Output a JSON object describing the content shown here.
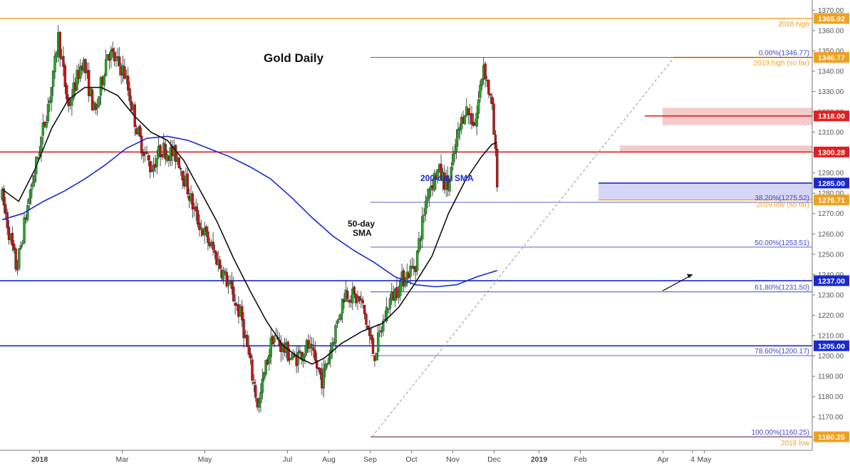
{
  "chart_data": {
    "type": "candlestick",
    "title": "Gold Daily",
    "instrument": "Gold",
    "timeframe": "Daily",
    "x_tick_labels": [
      "2018",
      "Mar",
      "May",
      "Jul",
      "Aug",
      "Sep",
      "Oct",
      "Nov",
      "Dec",
      "2019",
      "Feb",
      "4",
      "Apr",
      "May"
    ],
    "x_tick_months": [
      0,
      2,
      4,
      6,
      7,
      8,
      9,
      10,
      11,
      12,
      13,
      14,
      15,
      16
    ],
    "bold_ticks": [
      "2018",
      "2019"
    ],
    "ylim": [
      1155,
      1375
    ],
    "y_ticks": [
      1170,
      1180,
      1190,
      1200,
      1210,
      1220,
      1230,
      1240,
      1250,
      1260,
      1270,
      1280,
      1290,
      1300,
      1310,
      1320,
      1330,
      1340,
      1350,
      1360,
      1370
    ],
    "price_path": [
      {
        "t": 0.0,
        "p": 1278
      },
      {
        "t": 0.35,
        "p": 1242
      },
      {
        "t": 0.6,
        "p": 1272
      },
      {
        "t": 0.9,
        "p": 1302
      },
      {
        "t": 1.25,
        "p": 1338
      },
      {
        "t": 1.35,
        "p": 1358
      },
      {
        "t": 1.6,
        "p": 1322
      },
      {
        "t": 1.95,
        "p": 1346
      },
      {
        "t": 2.25,
        "p": 1318
      },
      {
        "t": 2.55,
        "p": 1350
      },
      {
        "t": 2.95,
        "p": 1340
      },
      {
        "t": 3.3,
        "p": 1308
      },
      {
        "t": 3.6,
        "p": 1292
      },
      {
        "t": 3.85,
        "p": 1302
      },
      {
        "t": 4.25,
        "p": 1298
      },
      {
        "t": 4.7,
        "p": 1268
      },
      {
        "t": 5.1,
        "p": 1252
      },
      {
        "t": 5.5,
        "p": 1234
      },
      {
        "t": 5.8,
        "p": 1218
      },
      {
        "t": 6.2,
        "p": 1174
      },
      {
        "t": 6.35,
        "p": 1192
      },
      {
        "t": 6.55,
        "p": 1210
      },
      {
        "t": 7.05,
        "p": 1198
      },
      {
        "t": 7.4,
        "p": 1205
      },
      {
        "t": 7.75,
        "p": 1188
      },
      {
        "t": 8.0,
        "p": 1208
      },
      {
        "t": 8.3,
        "p": 1232
      },
      {
        "t": 8.7,
        "p": 1226
      },
      {
        "t": 9.0,
        "p": 1200
      },
      {
        "t": 9.35,
        "p": 1226
      },
      {
        "t": 9.7,
        "p": 1238
      },
      {
        "t": 10.0,
        "p": 1245
      },
      {
        "t": 10.3,
        "p": 1282
      },
      {
        "t": 10.55,
        "p": 1291
      },
      {
        "t": 10.8,
        "p": 1283
      },
      {
        "t": 11.0,
        "p": 1306
      },
      {
        "t": 11.2,
        "p": 1322
      },
      {
        "t": 11.45,
        "p": 1314
      },
      {
        "t": 11.65,
        "p": 1344
      },
      {
        "t": 11.85,
        "p": 1322
      },
      {
        "t": 11.98,
        "p": 1287
      }
    ],
    "sma_50": [
      {
        "t": 0.0,
        "p": 1282
      },
      {
        "t": 0.4,
        "p": 1276
      },
      {
        "t": 0.8,
        "p": 1292
      },
      {
        "t": 1.2,
        "p": 1312
      },
      {
        "t": 1.6,
        "p": 1326
      },
      {
        "t": 2.0,
        "p": 1332
      },
      {
        "t": 2.4,
        "p": 1332
      },
      {
        "t": 2.8,
        "p": 1328
      },
      {
        "t": 3.2,
        "p": 1318
      },
      {
        "t": 3.6,
        "p": 1310
      },
      {
        "t": 4.0,
        "p": 1306
      },
      {
        "t": 4.4,
        "p": 1296
      },
      {
        "t": 4.8,
        "p": 1281
      },
      {
        "t": 5.2,
        "p": 1266
      },
      {
        "t": 5.6,
        "p": 1248
      },
      {
        "t": 6.0,
        "p": 1232
      },
      {
        "t": 6.4,
        "p": 1217
      },
      {
        "t": 6.8,
        "p": 1205
      },
      {
        "t": 7.2,
        "p": 1199
      },
      {
        "t": 7.5,
        "p": 1196
      },
      {
        "t": 7.8,
        "p": 1199
      },
      {
        "t": 8.2,
        "p": 1206
      },
      {
        "t": 8.7,
        "p": 1212
      },
      {
        "t": 9.2,
        "p": 1216
      },
      {
        "t": 9.6,
        "p": 1224
      },
      {
        "t": 10.0,
        "p": 1236
      },
      {
        "t": 10.4,
        "p": 1249
      },
      {
        "t": 10.8,
        "p": 1270
      },
      {
        "t": 11.2,
        "p": 1286
      },
      {
        "t": 11.6,
        "p": 1298
      },
      {
        "t": 11.85,
        "p": 1304
      },
      {
        "t": 11.98,
        "p": 1305
      }
    ],
    "sma_200": [
      {
        "t": 0.0,
        "p": 1267
      },
      {
        "t": 0.5,
        "p": 1270
      },
      {
        "t": 1.0,
        "p": 1276
      },
      {
        "t": 1.5,
        "p": 1281
      },
      {
        "t": 2.0,
        "p": 1287
      },
      {
        "t": 2.5,
        "p": 1294
      },
      {
        "t": 3.0,
        "p": 1302
      },
      {
        "t": 3.5,
        "p": 1307
      },
      {
        "t": 4.0,
        "p": 1308
      },
      {
        "t": 4.5,
        "p": 1306
      },
      {
        "t": 5.0,
        "p": 1302
      },
      {
        "t": 5.5,
        "p": 1298
      },
      {
        "t": 6.0,
        "p": 1293
      },
      {
        "t": 6.5,
        "p": 1287
      },
      {
        "t": 7.0,
        "p": 1278
      },
      {
        "t": 7.5,
        "p": 1268
      },
      {
        "t": 8.0,
        "p": 1259
      },
      {
        "t": 8.5,
        "p": 1252
      },
      {
        "t": 9.0,
        "p": 1246
      },
      {
        "t": 9.5,
        "p": 1239
      },
      {
        "t": 10.0,
        "p": 1235
      },
      {
        "t": 10.5,
        "p": 1234
      },
      {
        "t": 11.0,
        "p": 1235
      },
      {
        "t": 11.5,
        "p": 1239
      },
      {
        "t": 11.98,
        "p": 1242
      }
    ],
    "horizontal_levels": [
      {
        "value": 1365.92,
        "color": "#f0a020",
        "role": "2018 high",
        "label": "1365.92"
      },
      {
        "value": 1346.77,
        "color": "#f0a020",
        "role": "2019 high (so far)",
        "label": "1346.77"
      },
      {
        "value": 1318.0,
        "color": "#e02020",
        "role": "resistance",
        "label": "1318.00"
      },
      {
        "value": 1300.28,
        "color": "#e02020",
        "role": "resistance",
        "label": "1300.28"
      },
      {
        "value": 1285.0,
        "color": "#1a2acc",
        "role": "support",
        "label": "1285.00"
      },
      {
        "value": 1276.71,
        "color": "#f0a020",
        "role": "2019 low (so far)",
        "label": "1276.71"
      },
      {
        "value": 1237.0,
        "color": "#1a2acc",
        "role": "support",
        "label": "1237.00"
      },
      {
        "value": 1205.0,
        "color": "#1a2acc",
        "role": "support",
        "label": "1205.00"
      },
      {
        "value": 1160.25,
        "color": "#f0a020",
        "role": "2018 low",
        "label": "1160.25"
      }
    ],
    "fibonacci": [
      {
        "value": 1346.77,
        "label": "0.00%(1346.77)"
      },
      {
        "value": 1275.52,
        "label": "38.20%(1275.52)"
      },
      {
        "value": 1253.51,
        "label": "50.00%(1253.51)"
      },
      {
        "value": 1231.5,
        "label": "61.80%(1231.50)"
      },
      {
        "value": 1200.17,
        "label": "78.60%(1200.17)"
      },
      {
        "value": 1160.25,
        "label": "100.00%(1160.25)"
      }
    ],
    "zones": [
      {
        "from": 1313.5,
        "to": 1322.0,
        "color": "#f2b8b8"
      },
      {
        "from": 1300.28,
        "to": 1303.5,
        "color": "#f2b8b8"
      },
      {
        "from": 1276.71,
        "to": 1285.0,
        "color": "#c8caf5"
      }
    ],
    "annotations": {
      "title_text": "Gold Daily",
      "sma200_text": "200-day SMA",
      "sma50_line1": "50-day",
      "sma50_line2": "SMA",
      "high_2018": "2018 high",
      "high_2019": "2019 high (so far)",
      "low_2019": "2019 low (so far)",
      "low_2018": "2018 low"
    },
    "colors": {
      "bull": "#22aa22",
      "bear": "#cc1111",
      "sma50": "#111111",
      "sma200": "#1a2acc",
      "orange": "#f0a020",
      "red": "#e02020",
      "blue": "#1a2acc",
      "fib": "#4048c8"
    }
  }
}
